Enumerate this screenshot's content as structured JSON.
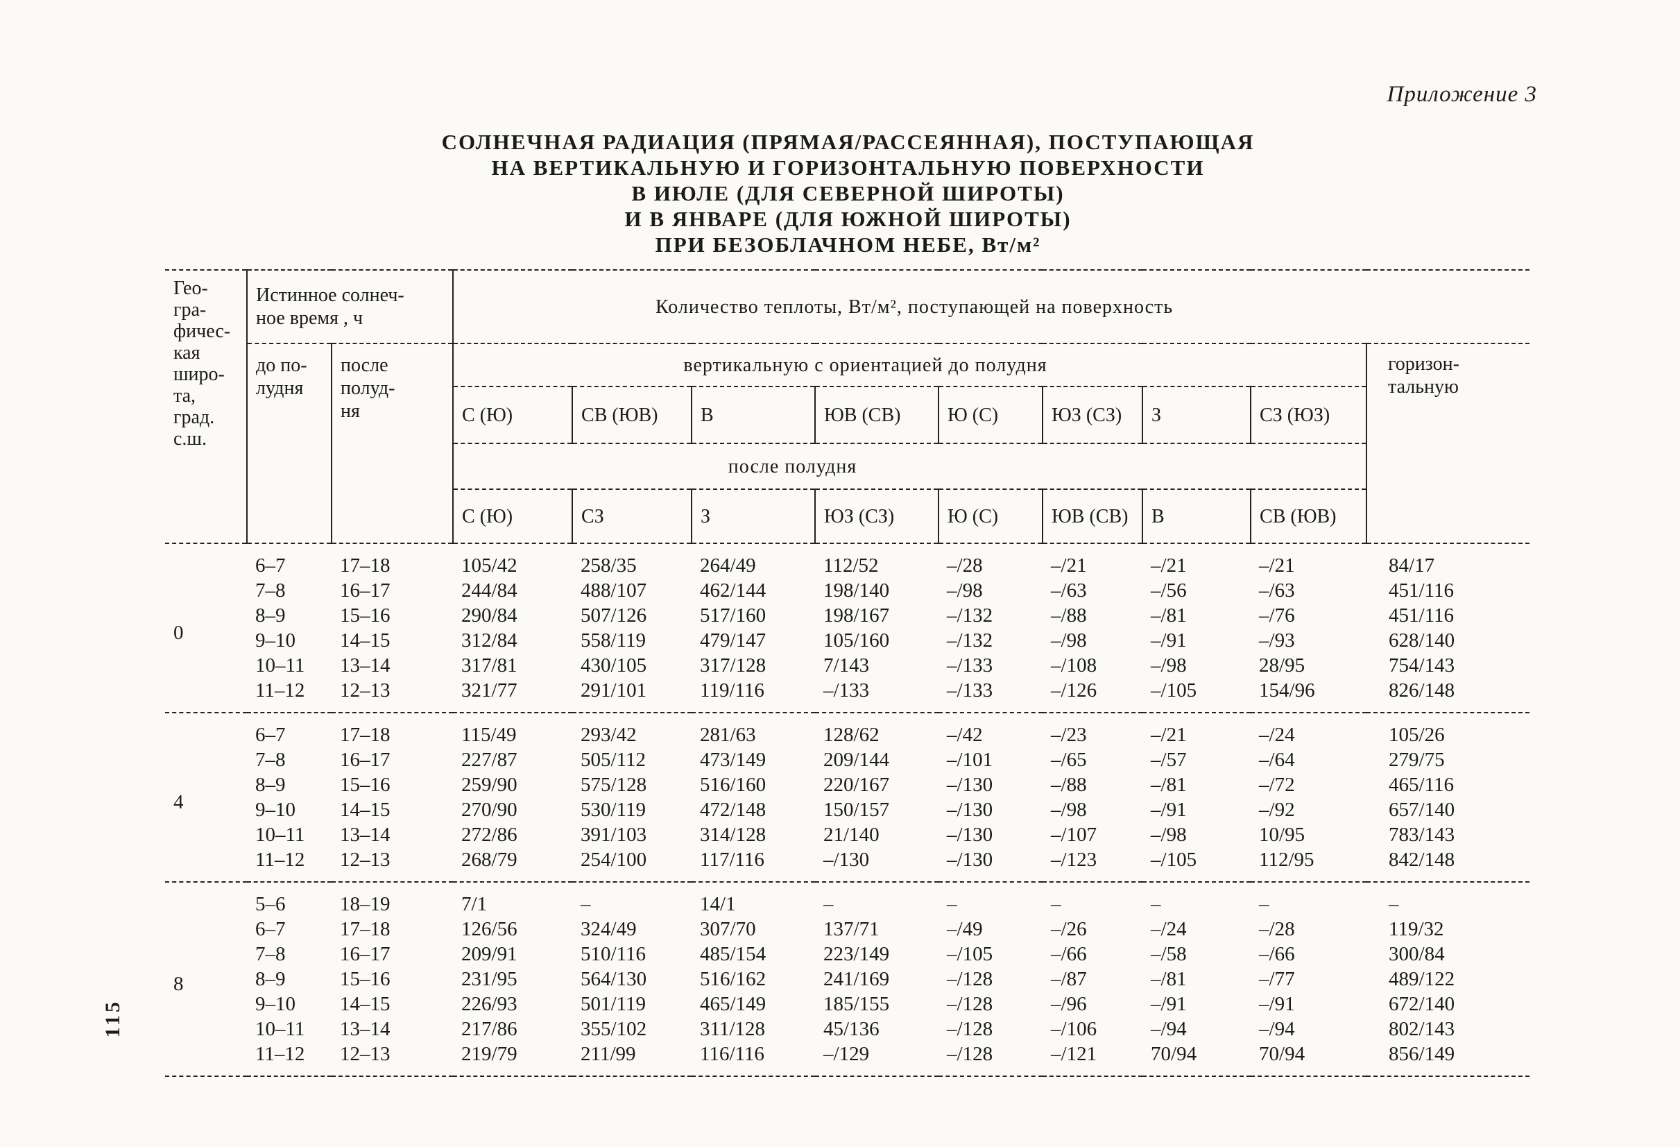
{
  "page": {
    "annex_label": "Приложение 3",
    "page_number": "115"
  },
  "title": {
    "line1": "СОЛНЕЧНАЯ РАДИАЦИЯ (ПРЯМАЯ/РАССЕЯННАЯ), ПОСТУПАЮЩАЯ",
    "line2": "НА ВЕРТИКАЛЬНУЮ И ГОРИЗОНТАЛЬНУЮ ПОВЕРХНОСТИ",
    "line3": "В ИЮЛЕ (ДЛЯ СЕВЕРНОЙ ШИРОТЫ)",
    "line4": "И В ЯНВАРЕ (ДЛЯ ЮЖНОЙ ШИРОТЫ)",
    "line5": "ПРИ БЕЗОБЛАЧНОМ НЕБЕ, Вт/м²"
  },
  "table": {
    "header": {
      "latitude": "Гео-\nгра-\nфичес-\nкая\nширо-\nта,\nград.\nс.ш.",
      "true_solar_time": "Истинное солнеч-\nное время , ч",
      "before_noon": "до по-\nлудня",
      "after_noon": "после\nполуд-\nня",
      "heat_quantity": "Количество теплоты, Вт/м², поступающей на поверхность",
      "vertical_before_noon": "вертикальную с ориентацией до полудня",
      "after_noon_band": "после полудня",
      "horizontal": "горизон-\nтальную",
      "orientations_am": [
        "С (Ю)",
        "СВ (ЮВ)",
        "В",
        "ЮВ (СВ)",
        "Ю (С)",
        "ЮЗ (СЗ)",
        "З",
        "СЗ (ЮЗ)"
      ],
      "orientations_pm": [
        "С (Ю)",
        "СЗ",
        "З",
        "ЮЗ (СЗ)",
        "Ю (С)",
        "ЮВ (СВ)",
        "В",
        "СВ (ЮВ)"
      ]
    },
    "groups": [
      {
        "latitude": "0",
        "rows": [
          {
            "am": "6–7",
            "pm": "17–18",
            "values": [
              "105/42",
              "258/35",
              "264/49",
              "112/52",
              "–/28",
              "–/21",
              "–/21",
              "–/21",
              "84/17"
            ]
          },
          {
            "am": "7–8",
            "pm": "16–17",
            "values": [
              "244/84",
              "488/107",
              "462/144",
              "198/140",
              "–/98",
              "–/63",
              "–/56",
              "–/63",
              "451/116"
            ]
          },
          {
            "am": "8–9",
            "pm": "15–16",
            "values": [
              "290/84",
              "507/126",
              "517/160",
              "198/167",
              "–/132",
              "–/88",
              "–/81",
              "–/76",
              "451/116"
            ]
          },
          {
            "am": "9–10",
            "pm": "14–15",
            "values": [
              "312/84",
              "558/119",
              "479/147",
              "105/160",
              "–/132",
              "–/98",
              "–/91",
              "–/93",
              "628/140"
            ]
          },
          {
            "am": "10–11",
            "pm": "13–14",
            "values": [
              "317/81",
              "430/105",
              "317/128",
              "7/143",
              "–/133",
              "–/108",
              "–/98",
              "28/95",
              "754/143"
            ]
          },
          {
            "am": "11–12",
            "pm": "12–13",
            "values": [
              "321/77",
              "291/101",
              "119/116",
              "–/133",
              "–/133",
              "–/126",
              "–/105",
              "154/96",
              "826/148"
            ]
          }
        ]
      },
      {
        "latitude": "4",
        "rows": [
          {
            "am": "6–7",
            "pm": "17–18",
            "values": [
              "115/49",
              "293/42",
              "281/63",
              "128/62",
              "–/42",
              "–/23",
              "–/21",
              "–/24",
              "105/26"
            ]
          },
          {
            "am": "7–8",
            "pm": "16–17",
            "values": [
              "227/87",
              "505/112",
              "473/149",
              "209/144",
              "–/101",
              "–/65",
              "–/57",
              "–/64",
              "279/75"
            ]
          },
          {
            "am": "8–9",
            "pm": "15–16",
            "values": [
              "259/90",
              "575/128",
              "516/160",
              "220/167",
              "–/130",
              "–/88",
              "–/81",
              "–/72",
              "465/116"
            ]
          },
          {
            "am": "9–10",
            "pm": "14–15",
            "values": [
              "270/90",
              "530/119",
              "472/148",
              "150/157",
              "–/130",
              "–/98",
              "–/91",
              "–/92",
              "657/140"
            ]
          },
          {
            "am": "10–11",
            "pm": "13–14",
            "values": [
              "272/86",
              "391/103",
              "314/128",
              "21/140",
              "–/130",
              "–/107",
              "–/98",
              "10/95",
              "783/143"
            ]
          },
          {
            "am": "11–12",
            "pm": "12–13",
            "values": [
              "268/79",
              "254/100",
              "117/116",
              "–/130",
              "–/130",
              "–/123",
              "–/105",
              "112/95",
              "842/148"
            ]
          }
        ]
      },
      {
        "latitude": "8",
        "rows": [
          {
            "am": "5–6",
            "pm": "18–19",
            "values": [
              "7/1",
              "–",
              "14/1",
              "–",
              "–",
              "–",
              "–",
              "–",
              "–"
            ]
          },
          {
            "am": "6–7",
            "pm": "17–18",
            "values": [
              "126/56",
              "324/49",
              "307/70",
              "137/71",
              "–/49",
              "–/26",
              "–/24",
              "–/28",
              "119/32"
            ]
          },
          {
            "am": "7–8",
            "pm": "16–17",
            "values": [
              "209/91",
              "510/116",
              "485/154",
              "223/149",
              "–/105",
              "–/66",
              "–/58",
              "–/66",
              "300/84"
            ]
          },
          {
            "am": "8–9",
            "pm": "15–16",
            "values": [
              "231/95",
              "564/130",
              "516/162",
              "241/169",
              "–/128",
              "–/87",
              "–/81",
              "–/77",
              "489/122"
            ]
          },
          {
            "am": "9–10",
            "pm": "14–15",
            "values": [
              "226/93",
              "501/119",
              "465/149",
              "185/155",
              "–/128",
              "–/96",
              "–/91",
              "–/91",
              "672/140"
            ]
          },
          {
            "am": "10–11",
            "pm": "13–14",
            "values": [
              "217/86",
              "355/102",
              "311/128",
              "45/136",
              "–/128",
              "–/106",
              "–/94",
              "–/94",
              "802/143"
            ]
          },
          {
            "am": "11–12",
            "pm": "12–13",
            "values": [
              "219/79",
              "211/99",
              "116/116",
              "–/129",
              "–/128",
              "–/121",
              "70/94",
              "70/94",
              "856/149"
            ]
          }
        ]
      }
    ]
  }
}
